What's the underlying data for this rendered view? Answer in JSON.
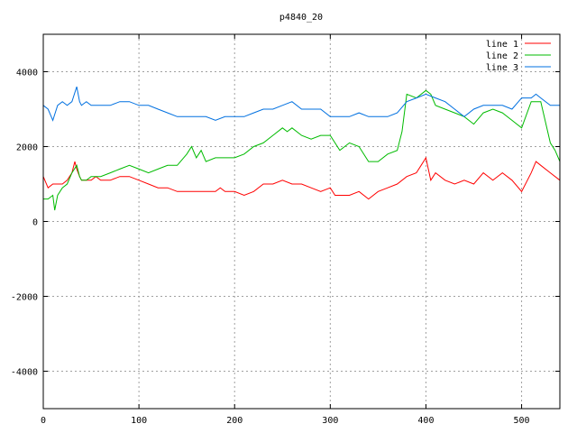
{
  "chart_data": {
    "type": "line",
    "title": "p4840_20",
    "xlabel": "",
    "ylabel": "",
    "xlim": [
      0,
      540
    ],
    "ylim": [
      -5000,
      5000
    ],
    "xticks": [
      0,
      100,
      200,
      300,
      400,
      500
    ],
    "yticks": [
      -4000,
      -2000,
      0,
      2000,
      4000
    ],
    "grid": true,
    "legend_position": "top-right",
    "series": [
      {
        "name": "line 1",
        "color": "#ff0000",
        "x": [
          0,
          5,
          10,
          15,
          20,
          25,
          30,
          33,
          35,
          38,
          40,
          45,
          50,
          55,
          60,
          70,
          80,
          90,
          100,
          110,
          120,
          130,
          140,
          150,
          160,
          170,
          180,
          185,
          190,
          200,
          210,
          220,
          230,
          240,
          250,
          260,
          270,
          280,
          290,
          300,
          305,
          310,
          320,
          330,
          340,
          350,
          360,
          370,
          380,
          390,
          395,
          400,
          405,
          410,
          420,
          430,
          440,
          450,
          460,
          470,
          480,
          490,
          500,
          510,
          515,
          520,
          530,
          540
        ],
        "y": [
          1200,
          900,
          1000,
          1000,
          1000,
          1100,
          1300,
          1600,
          1400,
          1200,
          1100,
          1100,
          1100,
          1200,
          1100,
          1100,
          1200,
          1200,
          1100,
          1000,
          900,
          900,
          800,
          800,
          800,
          800,
          800,
          900,
          800,
          800,
          700,
          800,
          1000,
          1000,
          1100,
          1000,
          1000,
          900,
          800,
          900,
          700,
          700,
          700,
          800,
          600,
          800,
          900,
          1000,
          1200,
          1300,
          1500,
          1700,
          1100,
          1300,
          1100,
          1000,
          1100,
          1000,
          1300,
          1100,
          1300,
          1100,
          800,
          1300,
          1600,
          1500,
          1300,
          1100
        ]
      },
      {
        "name": "line 2",
        "color": "#00bb00",
        "x": [
          0,
          5,
          10,
          12,
          15,
          20,
          25,
          30,
          35,
          38,
          40,
          45,
          50,
          60,
          70,
          80,
          90,
          100,
          110,
          120,
          130,
          140,
          150,
          155,
          160,
          165,
          170,
          180,
          190,
          200,
          210,
          220,
          230,
          240,
          250,
          255,
          260,
          270,
          280,
          290,
          300,
          310,
          320,
          330,
          340,
          350,
          360,
          370,
          375,
          380,
          390,
          400,
          405,
          410,
          420,
          430,
          440,
          450,
          460,
          470,
          480,
          490,
          500,
          510,
          520,
          530,
          535,
          540
        ],
        "y": [
          600,
          600,
          700,
          300,
          700,
          900,
          1000,
          1300,
          1500,
          1200,
          1100,
          1100,
          1200,
          1200,
          1300,
          1400,
          1500,
          1400,
          1300,
          1400,
          1500,
          1500,
          1800,
          2000,
          1700,
          1900,
          1600,
          1700,
          1700,
          1700,
          1800,
          2000,
          2100,
          2300,
          2500,
          2400,
          2500,
          2300,
          2200,
          2300,
          2300,
          1900,
          2100,
          2000,
          1600,
          1600,
          1800,
          1900,
          2400,
          3400,
          3300,
          3500,
          3400,
          3100,
          3000,
          2900,
          2800,
          2600,
          2900,
          3000,
          2900,
          2700,
          2500,
          3200,
          3200,
          2100,
          1900,
          1600
        ]
      },
      {
        "name": "line 3",
        "color": "#0070e0",
        "x": [
          0,
          5,
          10,
          15,
          20,
          25,
          30,
          35,
          38,
          40,
          45,
          50,
          60,
          70,
          80,
          90,
          100,
          110,
          120,
          130,
          140,
          150,
          160,
          170,
          180,
          190,
          200,
          210,
          220,
          230,
          240,
          250,
          260,
          270,
          280,
          290,
          300,
          310,
          320,
          330,
          340,
          350,
          360,
          370,
          380,
          390,
          400,
          410,
          420,
          430,
          440,
          450,
          460,
          470,
          480,
          490,
          500,
          510,
          515,
          520,
          530,
          540
        ],
        "y": [
          3100,
          3000,
          2700,
          3100,
          3200,
          3100,
          3200,
          3600,
          3200,
          3100,
          3200,
          3100,
          3100,
          3100,
          3200,
          3200,
          3100,
          3100,
          3000,
          2900,
          2800,
          2800,
          2800,
          2800,
          2700,
          2800,
          2800,
          2800,
          2900,
          3000,
          3000,
          3100,
          3200,
          3000,
          3000,
          3000,
          2800,
          2800,
          2800,
          2900,
          2800,
          2800,
          2800,
          2900,
          3200,
          3300,
          3400,
          3300,
          3200,
          3000,
          2800,
          3000,
          3100,
          3100,
          3100,
          3000,
          3300,
          3300,
          3400,
          3300,
          3100,
          3100
        ]
      }
    ]
  }
}
